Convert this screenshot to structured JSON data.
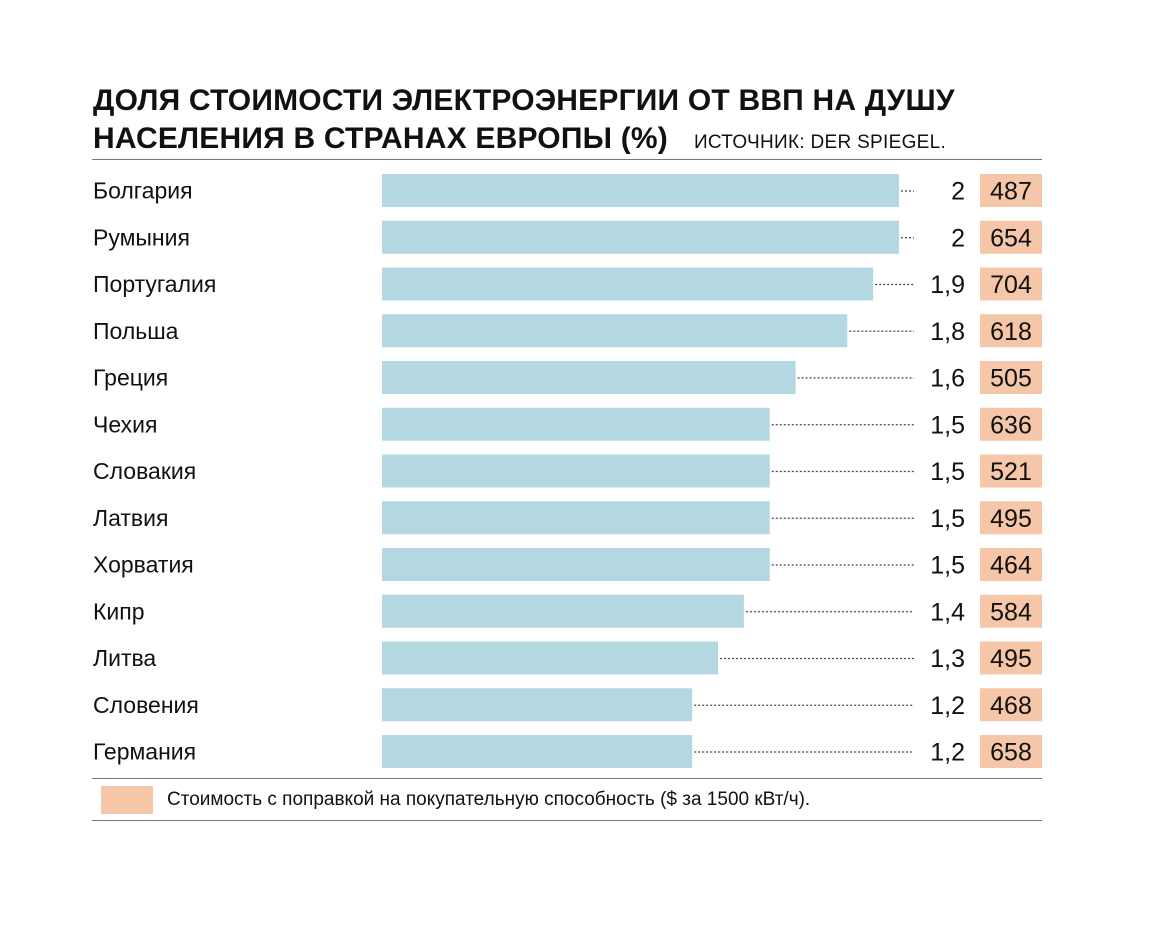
{
  "title_line1": "ДОЛЯ СТОИМОСТИ ЭЛЕКТРОЭНЕРГИИ ОТ ВВП НА ДУШУ",
  "title_line2": "НАСЕЛЕНИЯ В СТРАНАХ ЕВРОПЫ (%)",
  "source": "ИСТОЧНИК: DER SPIEGEL.",
  "legend_label": "Стоимость с поправкой на покупательную способность ($ за 1500 кВт/ч).",
  "colors": {
    "bar": "#b3d8e1",
    "cost_box": "#f6c6a8",
    "text": "#111111",
    "dots": "#444444"
  },
  "chart_data": {
    "type": "bar",
    "orientation": "horizontal",
    "title": "ДОЛЯ СТОИМОСТИ ЭЛЕКТРОЭНЕРГИИ ОТ ВВП НА ДУШУ НАСЕЛЕНИЯ В СТРАНАХ ЕВРОПЫ (%)",
    "xlim": [
      0,
      2
    ],
    "categories": [
      "Болгария",
      "Румыния",
      "Португалия",
      "Польша",
      "Греция",
      "Чехия",
      "Словакия",
      "Латвия",
      "Хорватия",
      "Кипр",
      "Литва",
      "Словения",
      "Германия"
    ],
    "series": [
      {
        "name": "Доля от ВВП на душу населения (%)",
        "values": [
          2,
          2,
          1.9,
          1.8,
          1.6,
          1.5,
          1.5,
          1.5,
          1.5,
          1.4,
          1.3,
          1.2,
          1.2
        ]
      },
      {
        "name": "Стоимость с поправкой на покупательную способность ($ за 1500 кВт/ч)",
        "values": [
          487,
          654,
          704,
          618,
          505,
          636,
          521,
          495,
          464,
          584,
          495,
          468,
          658
        ]
      }
    ],
    "value_labels": [
      "2",
      "2",
      "1,9",
      "1,8",
      "1,6",
      "1,5",
      "1,5",
      "1,5",
      "1,5",
      "1,4",
      "1,3",
      "1,2",
      "1,2"
    ]
  }
}
